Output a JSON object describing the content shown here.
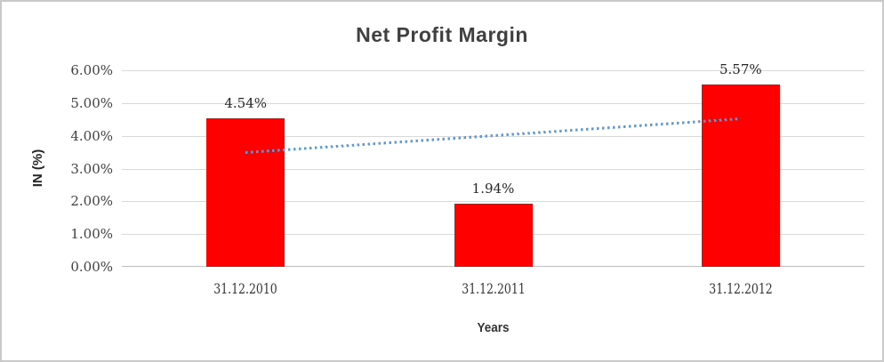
{
  "chart_data": {
    "type": "bar",
    "title": "Net Profit Margin",
    "xlabel": "Years",
    "ylabel": "IN (%)",
    "categories": [
      "31.12.2010",
      "31.12.2011",
      "31.12.2012"
    ],
    "values": [
      4.54,
      1.94,
      5.57
    ],
    "data_labels": [
      "4.54%",
      "1.94%",
      "5.57%"
    ],
    "y_ticks": [
      "0.00%",
      "1.00%",
      "2.00%",
      "3.00%",
      "4.00%",
      "5.00%",
      "6.00%"
    ],
    "ylim": [
      0,
      6
    ],
    "grid": true,
    "legend": "none",
    "bar_color": "#FF0000",
    "trendline": {
      "type": "linear",
      "style": "dotted",
      "color": "#5B9BD5",
      "start_value": 3.5,
      "end_value": 4.53
    }
  }
}
